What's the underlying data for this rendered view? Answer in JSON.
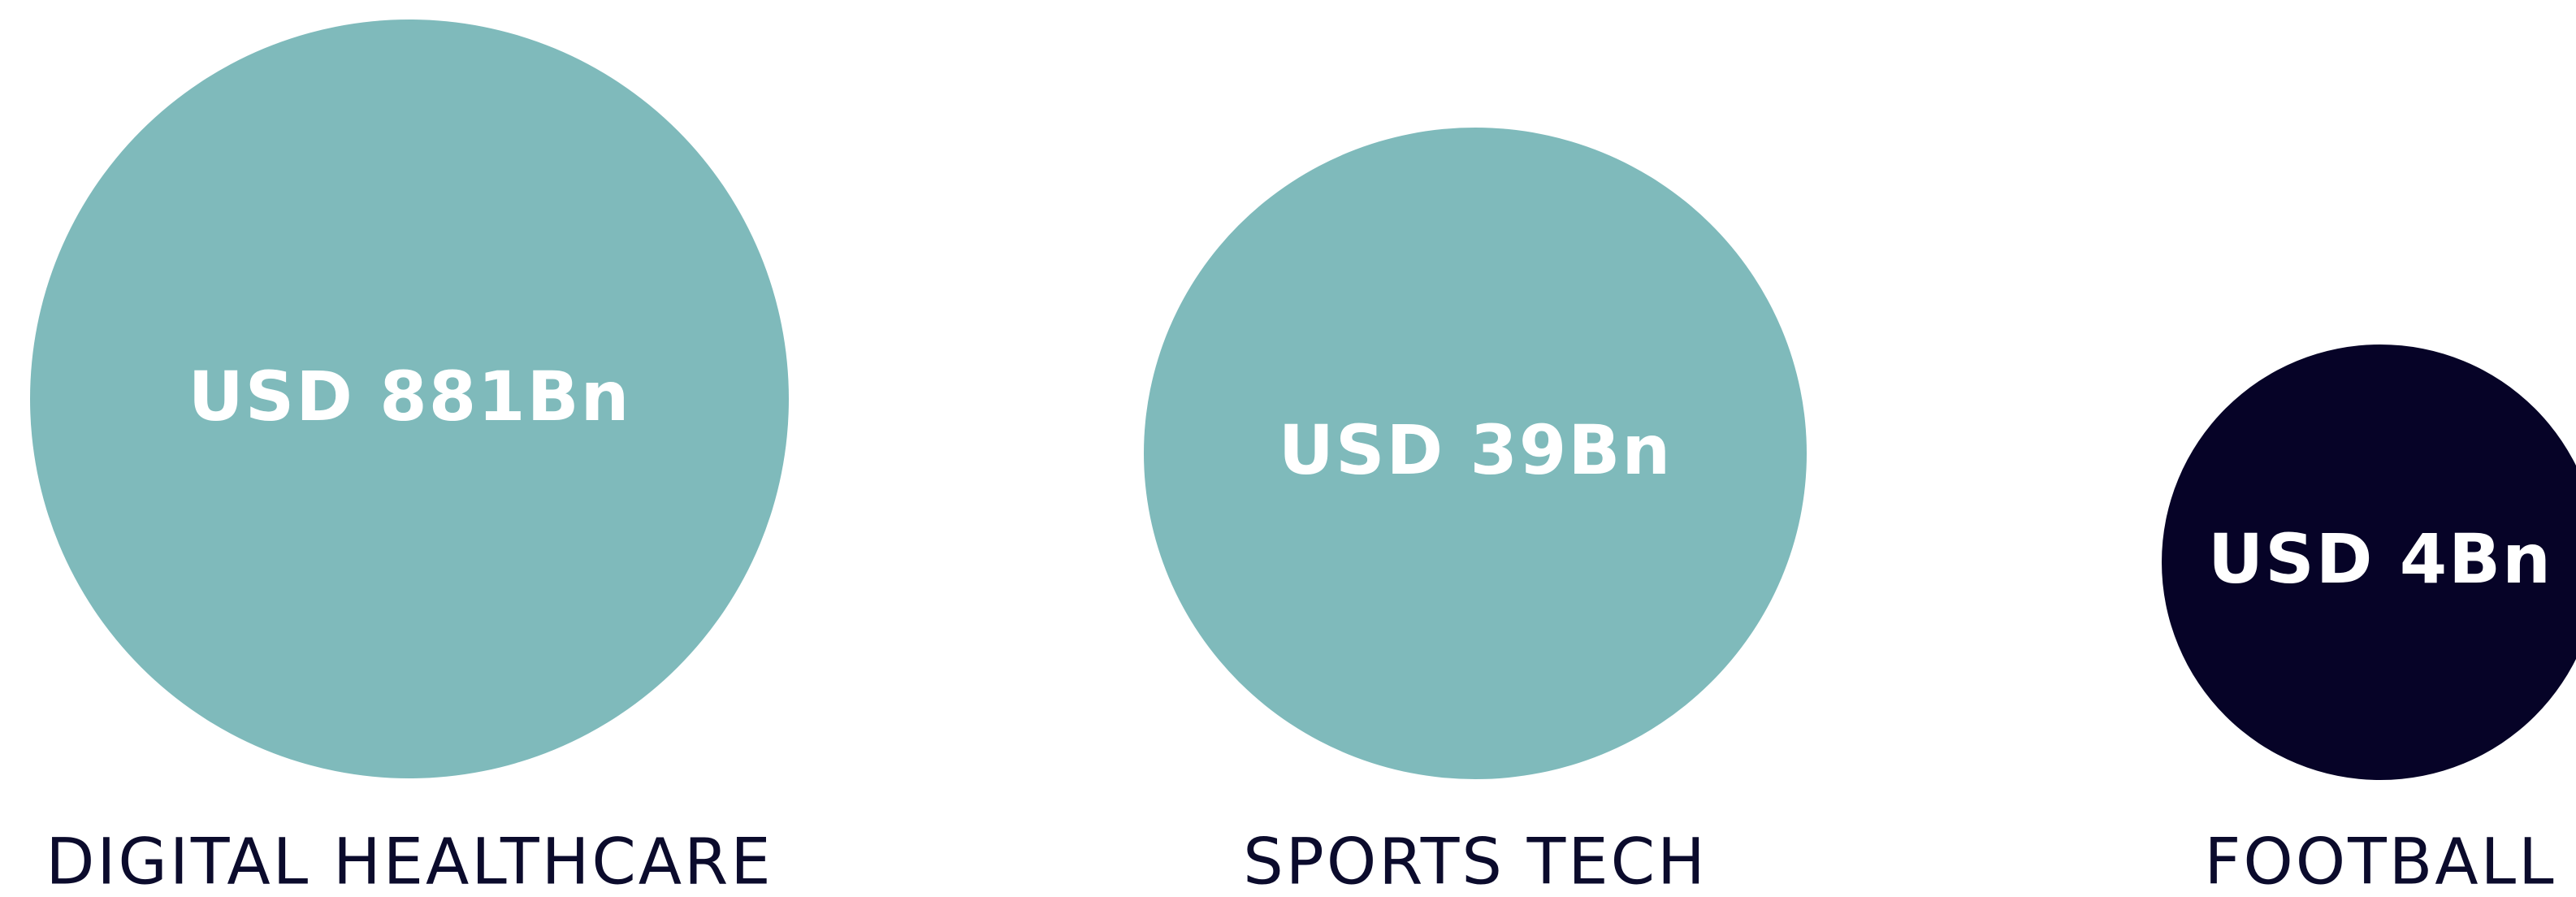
{
  "items": [
    {
      "value": "USD 881Bn",
      "label": "DIGITAL HEALTHCARE"
    },
    {
      "value": "USD 39Bn",
      "label": "SPORTS TECH"
    },
    {
      "value": "USD 4Bn",
      "label": "FOOTBALL"
    }
  ]
}
